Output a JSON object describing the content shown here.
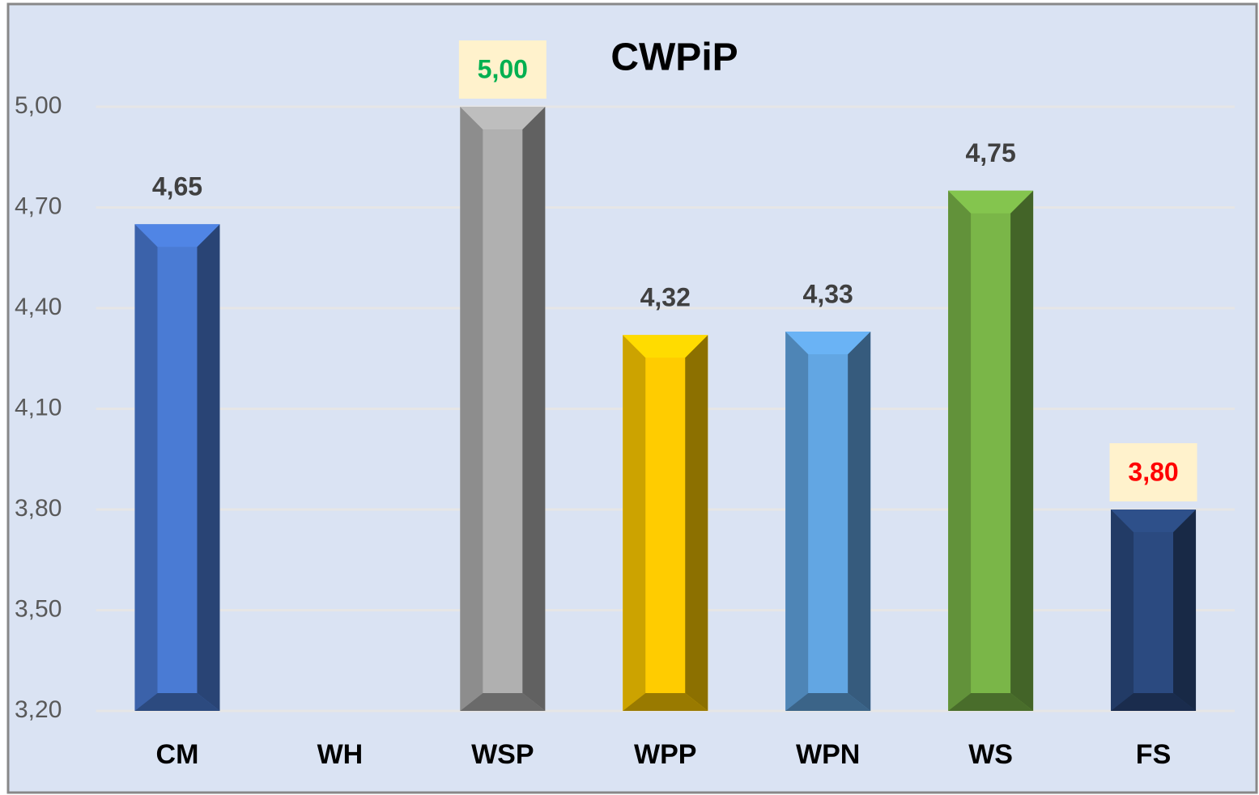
{
  "chart_data": {
    "type": "bar",
    "title": "CWPiP",
    "categories": [
      "CM",
      "WH",
      "WSP",
      "WPP",
      "WPN",
      "WS",
      "FS"
    ],
    "values": [
      4.65,
      null,
      5.0,
      4.32,
      4.33,
      4.75,
      3.8
    ],
    "value_labels": [
      "4,65",
      null,
      "5,00",
      "4,32",
      "4,33",
      "4,75",
      "3,80"
    ],
    "colors": [
      "#4a7bd4",
      null,
      "#b0b0b0",
      "#ffcc00",
      "#62a6e3",
      "#7ab648",
      "#2b4a80"
    ],
    "value_label_colors": [
      "#404040",
      null,
      "#00b050",
      "#404040",
      "#404040",
      "#404040",
      "#ff0000"
    ],
    "value_label_backgrounds": [
      null,
      null,
      "#fff2cc",
      null,
      null,
      null,
      "#fff2cc"
    ],
    "ylim": [
      3.2,
      5.0
    ],
    "yticks": [
      {
        "value": 3.2,
        "label": "3,20"
      },
      {
        "value": 3.5,
        "label": "3,50"
      },
      {
        "value": 3.8,
        "label": "3,80"
      },
      {
        "value": 4.1,
        "label": "4,10"
      },
      {
        "value": 4.4,
        "label": "4,40"
      },
      {
        "value": 4.7,
        "label": "4,70"
      },
      {
        "value": 5.0,
        "label": "5,00"
      }
    ],
    "grid": true
  }
}
